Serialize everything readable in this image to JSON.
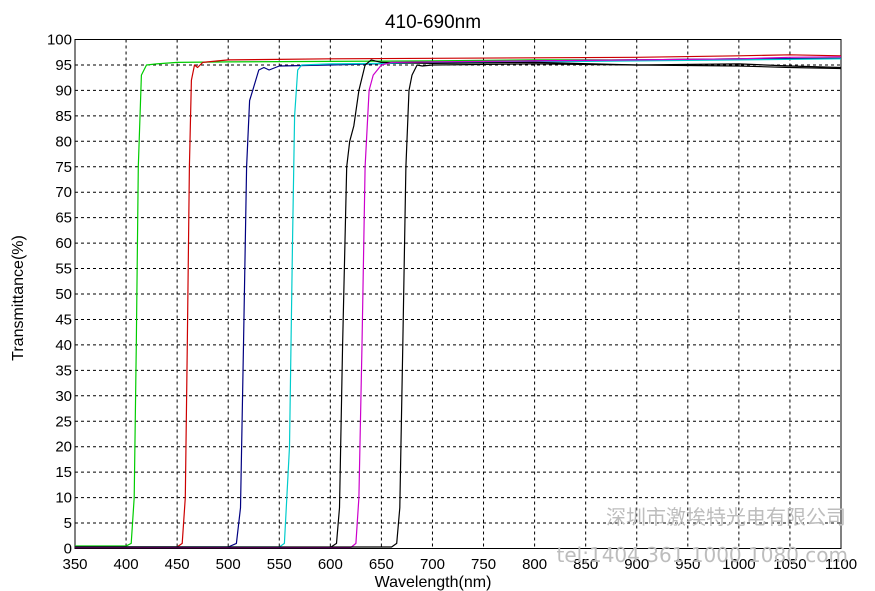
{
  "chart_data": {
    "type": "line",
    "title": "410-690nm",
    "xlabel": "Wavelength(nm)",
    "ylabel": "Transmittance(%)",
    "xlim": [
      350,
      1100
    ],
    "ylim": [
      0,
      100
    ],
    "x_ticks": [
      350,
      400,
      450,
      500,
      550,
      600,
      650,
      700,
      750,
      800,
      850,
      900,
      950,
      1000,
      1050,
      1100
    ],
    "y_ticks": [
      0,
      5,
      10,
      15,
      20,
      25,
      30,
      35,
      40,
      45,
      50,
      55,
      60,
      65,
      70,
      75,
      80,
      85,
      90,
      95,
      100
    ],
    "grid": true,
    "grid_style": "dashed",
    "legend": "none",
    "series": [
      {
        "color": "#00cc00",
        "x": [
          350,
          400,
          405,
          408,
          410,
          412,
          415,
          420,
          430,
          450,
          500,
          600,
          700,
          800,
          900,
          1000,
          1100
        ],
        "y": [
          0.5,
          0.5,
          1,
          10,
          40,
          75,
          93,
          95,
          95.2,
          95.5,
          95.6,
          95.7,
          95.8,
          96,
          96,
          96.2,
          96.3
        ]
      },
      {
        "color": "#cc0000",
        "x": [
          350,
          450,
          455,
          458,
          460,
          462,
          464,
          467,
          470,
          475,
          500,
          600,
          700,
          800,
          900,
          1000,
          1050,
          1100
        ],
        "y": [
          0.3,
          0.3,
          1,
          10,
          40,
          75,
          92,
          95,
          94.5,
          95.5,
          96,
          96.2,
          96.3,
          96.4,
          96.5,
          96.8,
          97,
          96.8
        ]
      },
      {
        "color": "#000080",
        "x": [
          350,
          500,
          508,
          512,
          515,
          518,
          521,
          524,
          530,
          535,
          540,
          550,
          600,
          700,
          800,
          900,
          1000,
          1100
        ],
        "y": [
          0.3,
          0.3,
          1,
          8,
          40,
          75,
          88,
          90,
          94,
          94.5,
          94,
          94.8,
          95,
          95.5,
          95.8,
          96,
          96.2,
          96.3
        ]
      },
      {
        "color": "#00cccc",
        "x": [
          350,
          550,
          555,
          560,
          563,
          565,
          568,
          572,
          600,
          700,
          800,
          900,
          1000,
          1100
        ],
        "y": [
          0.3,
          0.3,
          1,
          20,
          60,
          85,
          94,
          95,
          95.2,
          95.4,
          95.6,
          95.8,
          96,
          96.2
        ]
      },
      {
        "color": "#000000",
        "x": [
          350,
          600,
          606,
          609,
          612,
          616,
          619,
          623,
          628,
          634,
          640,
          650,
          700,
          800,
          900,
          1000,
          1050,
          1100
        ],
        "y": [
          0.2,
          0.2,
          1,
          8,
          40,
          75,
          80,
          83,
          90,
          95,
          96,
          95.5,
          95.3,
          95.5,
          95,
          95.2,
          94.8,
          94.5
        ]
      },
      {
        "color": "#cc00cc",
        "x": [
          350,
          620,
          625,
          628,
          631,
          634,
          638,
          642,
          650,
          660,
          700,
          800,
          900,
          1000,
          1050,
          1100
        ],
        "y": [
          0.2,
          0.2,
          1,
          10,
          40,
          75,
          90,
          93,
          95,
          95.5,
          95.6,
          95.8,
          96,
          96.2,
          96.5,
          96.6
        ]
      },
      {
        "color": "#000000",
        "x": [
          350,
          660,
          665,
          668,
          671,
          674,
          677,
          680,
          685,
          690,
          700,
          800,
          900,
          1000,
          1050,
          1100
        ],
        "y": [
          0.3,
          0.3,
          1,
          8,
          40,
          75,
          90,
          93,
          95,
          94.8,
          95,
          95.2,
          95,
          94.8,
          94.5,
          94.3
        ]
      }
    ]
  },
  "watermark": {
    "line1": "深圳市激埃特光电有限公司",
    "line2": "tel:1404 361 1000 1080 com"
  }
}
